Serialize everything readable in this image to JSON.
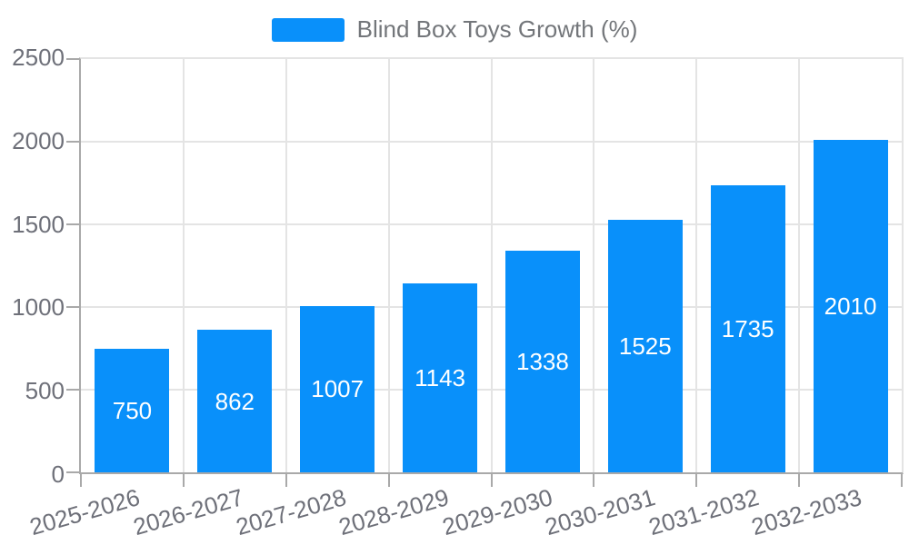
{
  "chart_data": {
    "type": "bar",
    "title": "Blind Box Toys Growth (%)",
    "legend": {
      "label": "Blind Box Toys Growth (%)",
      "position": "top-center"
    },
    "categories": [
      "2025-2026",
      "2026-2027",
      "2027-2028",
      "2028-2029",
      "2029-2030",
      "2030-2031",
      "2031-2032",
      "2032-2033"
    ],
    "series": [
      {
        "name": "Blind Box Toys Growth (%)",
        "values": [
          750,
          862,
          1007,
          1143,
          1338,
          1525,
          1735,
          2010
        ]
      }
    ],
    "xlabel": "",
    "ylabel": "",
    "ylim": [
      0,
      2500
    ],
    "yticks": [
      0,
      500,
      1000,
      1500,
      2000,
      2500
    ],
    "grid": true,
    "x_tick_label_rotation_deg": -16,
    "value_labels": "inside-center",
    "colors": {
      "bar": "#0990fa",
      "value_label": "#ffffff",
      "axis_label": "#6e7079",
      "legend_text": "#73767a",
      "axis_line": "#a9a9a9",
      "gridline": "#e4e4e4",
      "background": "#ffffff"
    }
  }
}
